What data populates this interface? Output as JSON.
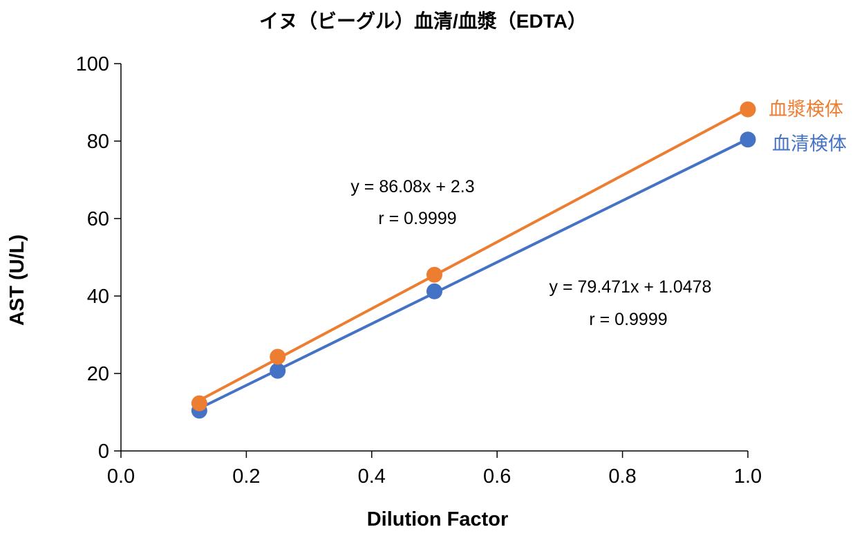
{
  "chart_data": {
    "type": "scatter",
    "title": "イヌ（ビーグル）血清/血漿（EDTA）",
    "xlabel": "Dilution Factor",
    "ylabel": "AST (U/L)",
    "xlim": [
      0,
      1.0
    ],
    "ylim": [
      0,
      100
    ],
    "xticks": [
      "0.0",
      "0.2",
      "0.4",
      "0.6",
      "0.8",
      "1.0"
    ],
    "yticks": [
      "0",
      "20",
      "40",
      "60",
      "80",
      "100"
    ],
    "grid": false,
    "series": [
      {
        "name": "血漿検体",
        "color": "#ED7D31",
        "x": [
          0.125,
          0.25,
          0.5,
          1.0
        ],
        "y": [
          12.3,
          24.3,
          45.5,
          88.2
        ],
        "trendline": {
          "slope": 86.08,
          "intercept": 2.3
        },
        "equation": "y = 86.08x + 2.3",
        "r": "r = 0.9999"
      },
      {
        "name": "血清検体",
        "color": "#4472C4",
        "x": [
          0.125,
          0.25,
          0.5,
          1.0
        ],
        "y": [
          10.4,
          20.7,
          41.2,
          80.4
        ],
        "trendline": {
          "slope": 79.471,
          "intercept": 1.0478
        },
        "equation": "y = 79.471x + 1.0478",
        "r": "r = 0.9999"
      }
    ]
  }
}
